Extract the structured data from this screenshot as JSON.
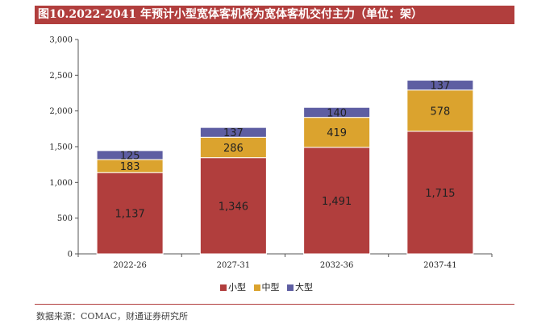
{
  "title": "图10.2022-2041 年预计小型宽体客机将为宽体客机交付主力（单位：架）",
  "source": "数据来源：COMAC，财通证券研究所",
  "colors": {
    "small": "#b13e3d",
    "medium": "#dba32e",
    "large": "#5e5ea2",
    "title_bg": "#b13e3d"
  },
  "chart_data": {
    "type": "bar",
    "stacked": true,
    "title": "图10.2022-2041 年预计小型宽体客机将为宽体客机交付主力（单位：架）",
    "categories": [
      "2022-26",
      "2027-31",
      "2032-36",
      "2037-41"
    ],
    "series": [
      {
        "name": "小型",
        "values": [
          1137,
          1346,
          1491,
          1715
        ],
        "labels": [
          "1,137",
          "1,346",
          "1,491",
          "1,715"
        ]
      },
      {
        "name": "中型",
        "values": [
          183,
          286,
          419,
          578
        ],
        "labels": [
          "183",
          "286",
          "419",
          "578"
        ]
      },
      {
        "name": "大型",
        "values": [
          125,
          137,
          140,
          137
        ],
        "labels": [
          "125",
          "137",
          "140",
          "137"
        ]
      }
    ],
    "ylim": [
      0,
      3000
    ],
    "yticks": [
      0,
      500,
      1000,
      1500,
      2000,
      2500,
      3000
    ],
    "ytick_labels": [
      "0",
      "500",
      "1,000",
      "1,500",
      "2,000",
      "2,500",
      "3,000"
    ],
    "xlabel": "",
    "ylabel": "",
    "legend_position": "bottom-center",
    "grid": false
  }
}
